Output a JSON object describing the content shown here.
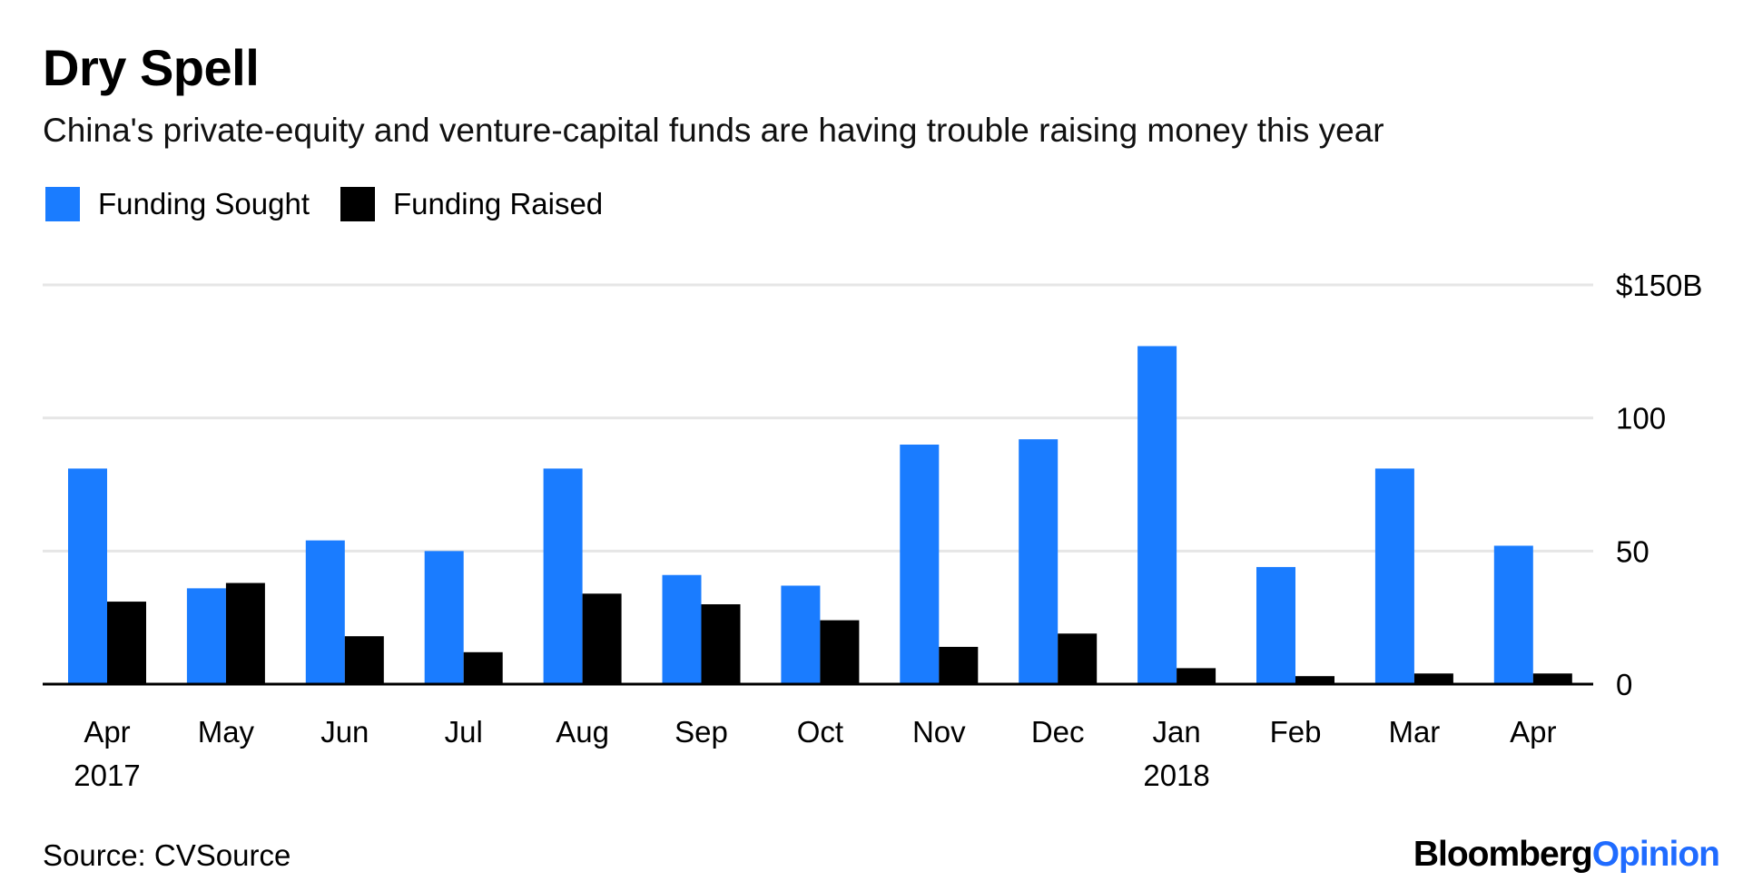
{
  "title": "Dry Spell",
  "subtitle": "China's private-equity and venture-capital funds are having trouble raising money this year",
  "source": "Source: CVSource",
  "brand": {
    "part1": "Bloomberg",
    "part2": "Opinion"
  },
  "colors": {
    "sought": "#1a7cff",
    "raised": "#000000",
    "grid": "#e6e6e6",
    "brand_accent": "#1f6bff"
  },
  "chart_data": {
    "type": "bar",
    "categories": [
      "Apr",
      "May",
      "Jun",
      "Jul",
      "Aug",
      "Sep",
      "Oct",
      "Nov",
      "Dec",
      "Jan",
      "Feb",
      "Mar",
      "Apr"
    ],
    "year_labels": [
      {
        "index": 0,
        "label": "2017"
      },
      {
        "index": 9,
        "label": "2018"
      }
    ],
    "series": [
      {
        "name": "Funding Sought",
        "values": [
          81,
          36,
          54,
          50,
          81,
          41,
          37,
          90,
          92,
          127,
          44,
          81,
          52
        ]
      },
      {
        "name": "Funding Raised",
        "values": [
          31,
          38,
          18,
          12,
          34,
          30,
          24,
          14,
          19,
          6,
          3,
          4,
          4
        ]
      }
    ],
    "ylim": [
      0,
      150
    ],
    "yticks": [
      {
        "value": 0,
        "label": "0"
      },
      {
        "value": 50,
        "label": "50"
      },
      {
        "value": 100,
        "label": "100"
      },
      {
        "value": 150,
        "label": "$150B"
      }
    ],
    "grid": true,
    "legend": "top-left"
  }
}
